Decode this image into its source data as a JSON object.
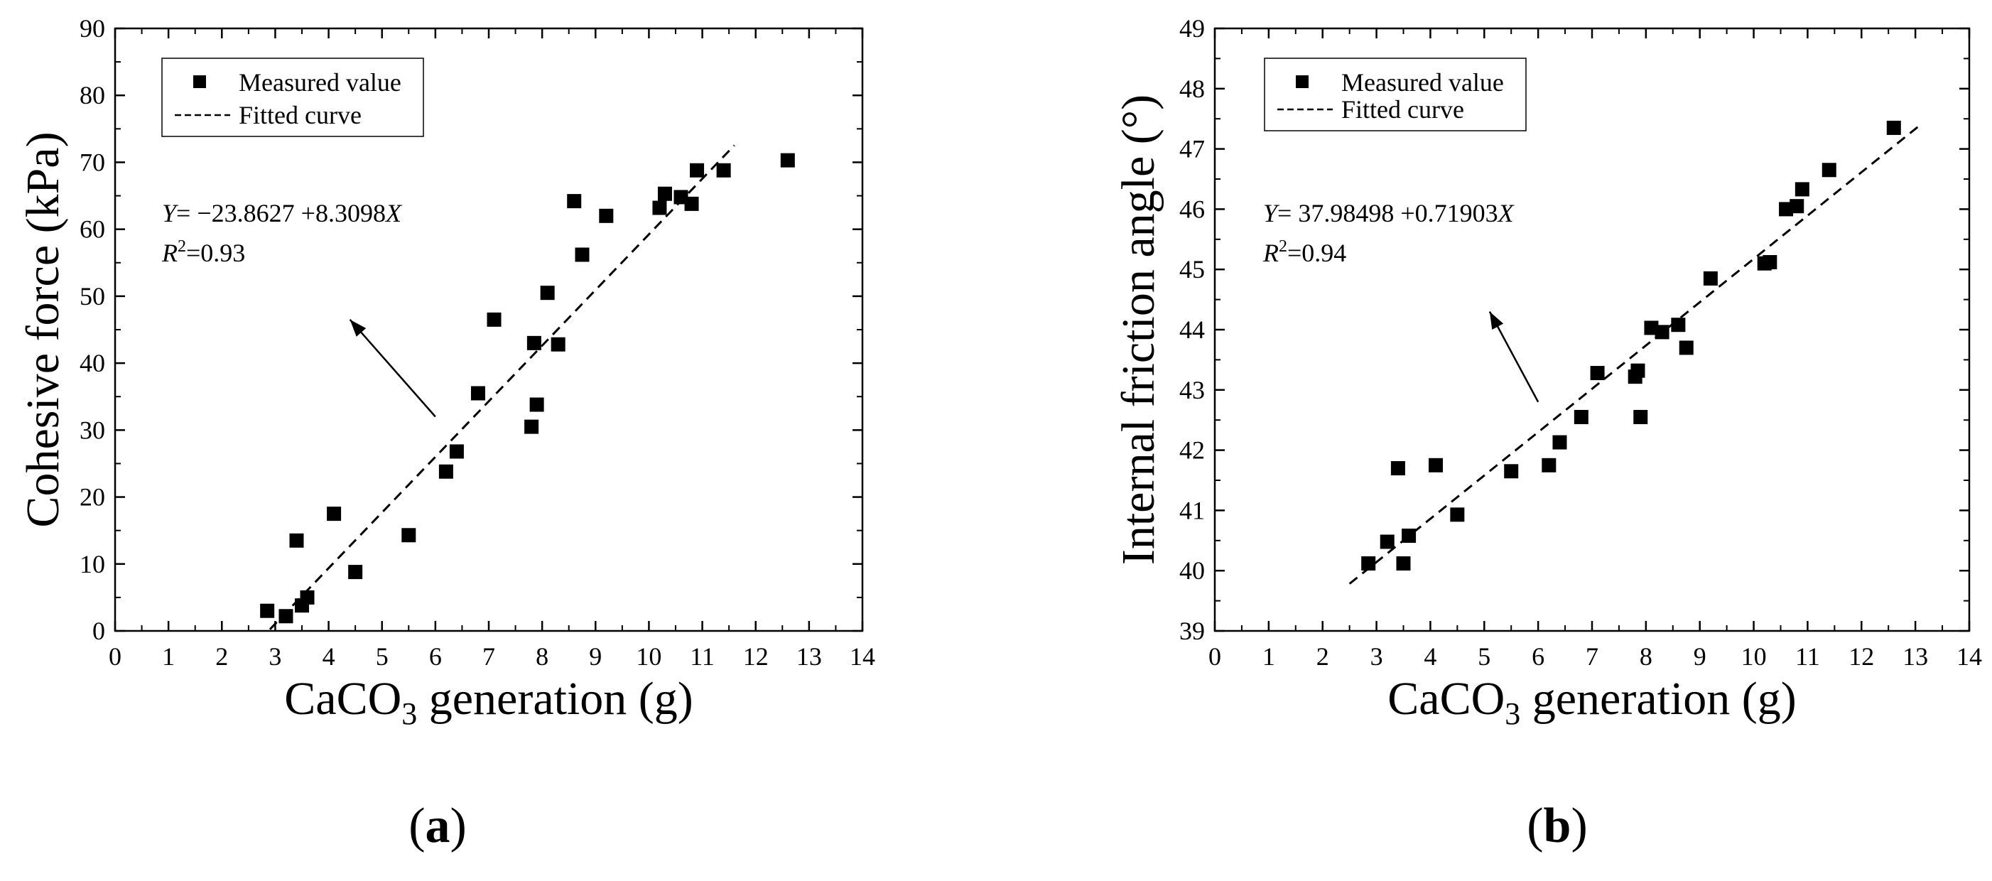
{
  "chart_data": [
    {
      "type": "scatter",
      "panel_label": "(a)",
      "xlabel_main": "CaCO",
      "xlabel_sub": "3",
      "xlabel_tail": " generation (g)",
      "ylabel": "Cohesive force (kPa)",
      "xlim": [
        0,
        14
      ],
      "ylim": [
        0,
        90
      ],
      "x_ticks": [
        0,
        1,
        2,
        3,
        4,
        5,
        6,
        7,
        8,
        9,
        10,
        11,
        12,
        13,
        14
      ],
      "y_ticks": [
        0,
        10,
        20,
        30,
        40,
        50,
        60,
        70,
        80,
        90
      ],
      "legend": {
        "position": "top-left",
        "items": [
          "Measured value",
          "Fitted curve"
        ]
      },
      "equation": {
        "y": "Y",
        "rest": "= −23.8627 +8.3098",
        "x": "X"
      },
      "r2": {
        "r": "R",
        "sup": "2",
        "rest": "=0.93"
      },
      "fit": {
        "intercept": -23.8627,
        "slope": 8.3098,
        "x_range": [
          2.9,
          11.6
        ]
      },
      "arrow": {
        "from": [
          6.0,
          32.0
        ],
        "to": [
          4.4,
          46.5
        ]
      },
      "series": [
        {
          "name": "Measured value",
          "x": [
            2.85,
            3.2,
            3.4,
            3.5,
            3.6,
            4.1,
            4.5,
            5.5,
            6.2,
            6.4,
            6.8,
            7.1,
            7.8,
            7.85,
            7.9,
            8.1,
            8.3,
            8.6,
            8.75,
            9.2,
            10.2,
            10.3,
            10.6,
            10.8,
            10.9,
            11.4,
            12.6
          ],
          "y": [
            3.0,
            2.2,
            13.5,
            3.8,
            5.0,
            17.5,
            8.8,
            14.3,
            23.8,
            26.8,
            35.5,
            46.5,
            30.5,
            43.0,
            33.8,
            50.5,
            42.8,
            64.2,
            56.2,
            62.0,
            63.2,
            65.3,
            64.8,
            63.8,
            68.8,
            68.8,
            70.3
          ]
        }
      ]
    },
    {
      "type": "scatter",
      "panel_label": "(b)",
      "xlabel_main": "CaCO",
      "xlabel_sub": "3",
      "xlabel_tail": " generation (g)",
      "ylabel": "Internal friction angle (°)",
      "xlim": [
        0,
        14
      ],
      "ylim": [
        39,
        49
      ],
      "x_ticks": [
        0,
        1,
        2,
        3,
        4,
        5,
        6,
        7,
        8,
        9,
        10,
        11,
        12,
        13,
        14
      ],
      "y_ticks": [
        39,
        40,
        41,
        42,
        43,
        44,
        45,
        46,
        47,
        48,
        49
      ],
      "legend": {
        "position": "top-left",
        "items": [
          "Measured value",
          "Fitted curve"
        ]
      },
      "equation": {
        "y": "Y",
        "rest": "= 37.98498 +0.71903",
        "x": "X"
      },
      "r2": {
        "r": "R",
        "sup": "2",
        "rest": "=0.94"
      },
      "fit": {
        "intercept": 37.98498,
        "slope": 0.71903,
        "x_range": [
          2.5,
          13.1
        ]
      },
      "arrow": {
        "from": [
          6.0,
          42.8
        ],
        "to": [
          5.1,
          44.3
        ]
      },
      "series": [
        {
          "name": "Measured value",
          "x": [
            2.85,
            3.2,
            3.4,
            3.5,
            3.6,
            4.1,
            4.5,
            5.5,
            6.2,
            6.4,
            6.8,
            7.1,
            7.8,
            7.85,
            7.9,
            8.1,
            8.3,
            8.6,
            8.75,
            9.2,
            10.2,
            10.3,
            10.6,
            10.8,
            10.9,
            11.4,
            12.6
          ],
          "y": [
            40.12,
            40.48,
            41.7,
            40.12,
            40.58,
            41.75,
            40.93,
            41.65,
            41.75,
            42.13,
            42.55,
            43.28,
            43.22,
            43.32,
            42.55,
            44.03,
            43.96,
            44.08,
            43.7,
            44.85,
            45.1,
            45.12,
            46.0,
            46.05,
            46.33,
            46.65,
            47.35
          ]
        }
      ]
    }
  ]
}
